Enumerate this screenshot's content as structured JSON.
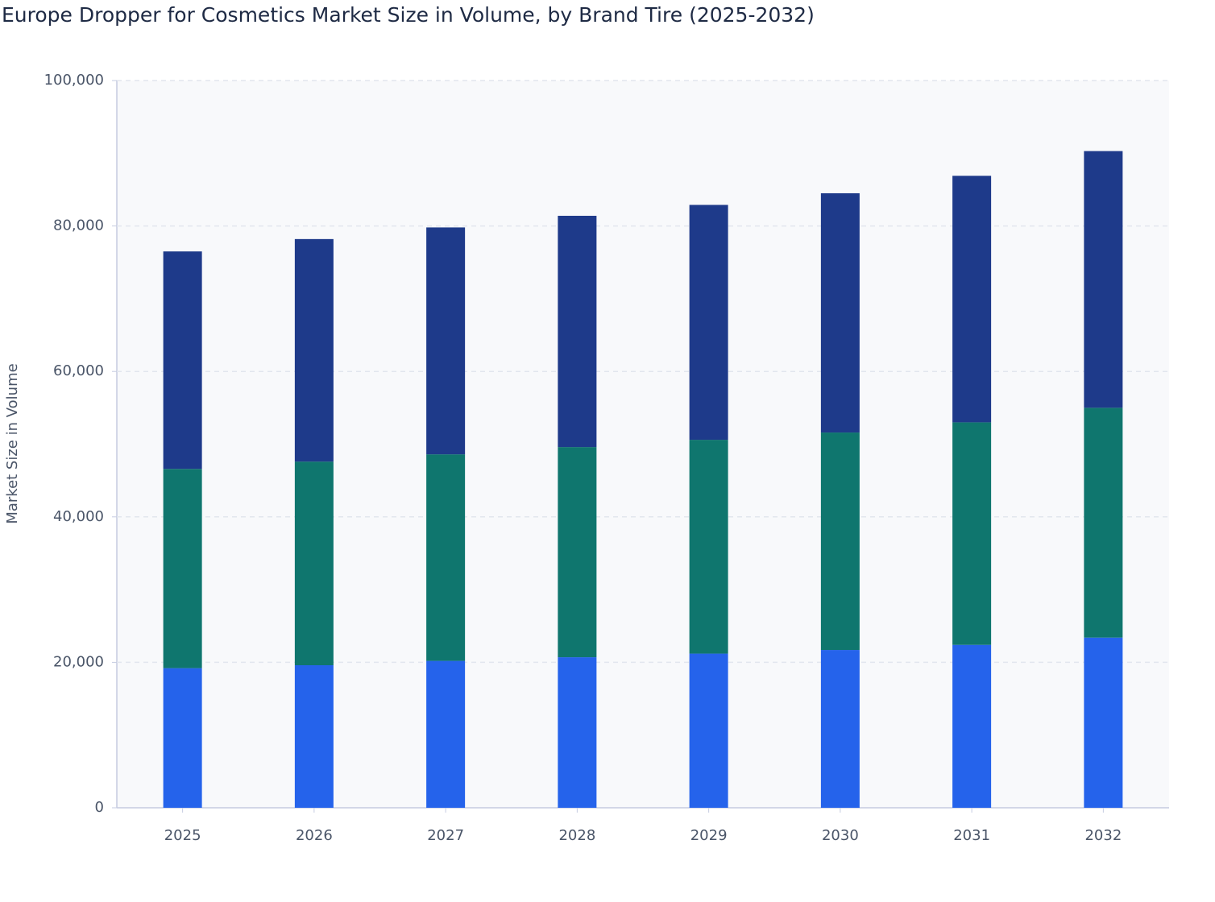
{
  "chart_data": {
    "type": "stacked_bar",
    "title": "Europe Dropper for Cosmetics Market Size in Volume, by Brand Tire (2025-2032)",
    "y_label": "Market Size in Volume",
    "categories": [
      "2025",
      "2026",
      "2027",
      "2028",
      "2029",
      "2030",
      "2031",
      "2032"
    ],
    "series": [
      {
        "color": "#2563eb",
        "values": [
          19200,
          19600,
          20200,
          20700,
          21200,
          21700,
          22400,
          23400
        ]
      },
      {
        "color": "#0f766e",
        "values": [
          27400,
          28000,
          28400,
          28900,
          29400,
          29900,
          30600,
          31600
        ]
      },
      {
        "color": "#1e3a8a",
        "values": [
          29900,
          30600,
          31200,
          31800,
          32300,
          32900,
          33900,
          35300
        ]
      }
    ],
    "ylim": [
      0,
      100000
    ],
    "yticks": [
      0,
      {
        "value": 20000,
        "label": "20,000"
      },
      {
        "value": 40000,
        "label": "40,000"
      },
      {
        "value": 60000,
        "label": "60,000"
      },
      {
        "value": 80000,
        "label": "80,000"
      },
      {
        "value": 100000,
        "label": "100,000"
      }
    ],
    "grid": true
  }
}
